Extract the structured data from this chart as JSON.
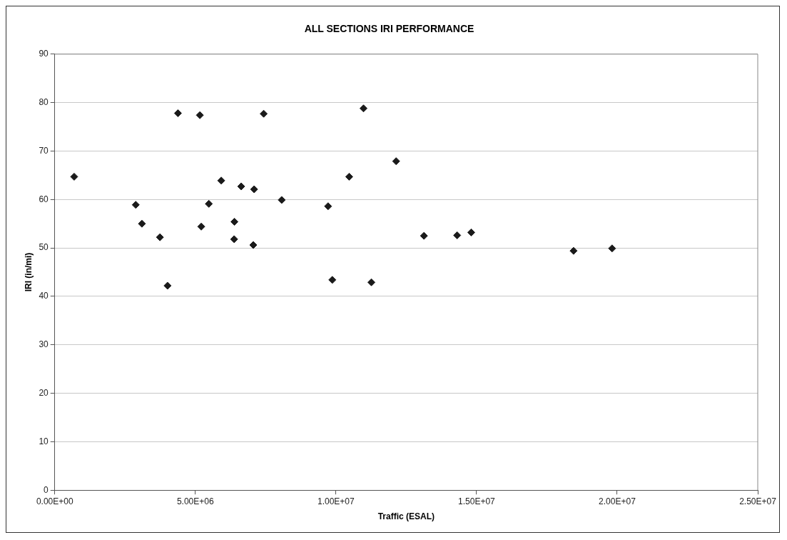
{
  "chart_data": {
    "type": "scatter",
    "title": "ALL SECTIONS IRI PERFORMANCE",
    "xlabel": "Traffic (ESAL)",
    "ylabel": "IRI (in/mi)",
    "series": [
      {
        "color": "#1a1a1a",
        "x": [
          690000,
          2880000,
          3100000,
          3740000,
          4010000,
          4380000,
          5160000,
          5210000,
          5480000,
          5920000,
          6390000,
          6380000,
          6630000,
          7090000,
          7060000,
          7430000,
          8070000,
          9720000,
          9870000,
          10470000,
          10980000,
          11260000,
          12140000,
          13130000,
          14310000,
          14810000,
          18450000,
          19820000
        ],
        "values": [
          64.7,
          58.9,
          55.0,
          52.2,
          42.2,
          77.8,
          77.4,
          54.4,
          59.1,
          63.9,
          55.4,
          51.8,
          62.7,
          62.1,
          50.6,
          77.7,
          59.9,
          58.6,
          43.4,
          64.7,
          78.8,
          42.9,
          67.9,
          52.5,
          52.6,
          53.2,
          49.4,
          49.9
        ]
      }
    ],
    "xlim": [
      0,
      25000000
    ],
    "xticks": [
      {
        "value": 0,
        "label": "0.00E+00"
      },
      {
        "value": 5000000,
        "label": "5.00E+06"
      },
      {
        "value": 10000000,
        "label": "1.00E+07"
      },
      {
        "value": 15000000,
        "label": "1.50E+07"
      },
      {
        "value": 20000000,
        "label": "2.00E+07"
      },
      {
        "value": 25000000,
        "label": "2.50E+07"
      }
    ],
    "ylim": [
      0,
      90
    ],
    "yticks": [
      0,
      10,
      20,
      30,
      40,
      50,
      60,
      70,
      80,
      90
    ],
    "grid": "y",
    "legend": false,
    "marker": "diamond"
  }
}
